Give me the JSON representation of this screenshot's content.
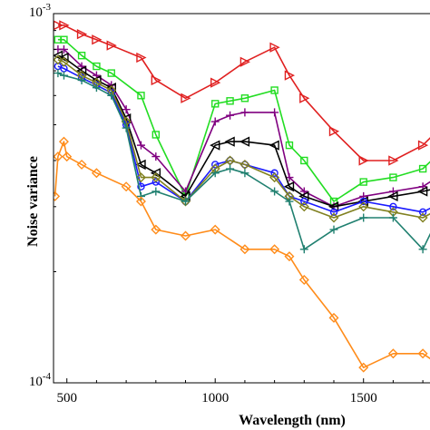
{
  "chart_data": {
    "type": "line",
    "title": "",
    "xlabel": "Wavelength (nm)",
    "ylabel": "Noise variance",
    "xlim": [
      455,
      1770
    ],
    "ylim": [
      0.0001,
      0.001
    ],
    "yscale": "log",
    "xticks": [
      500,
      1000,
      1500
    ],
    "xtick_labels": [
      "500",
      "1000",
      "1500"
    ],
    "ytick_labels": [
      {
        "value": 0.0001,
        "base": "10",
        "exp": "-4"
      },
      {
        "value": 0.001,
        "base": "10",
        "exp": "-3"
      }
    ],
    "grid": false,
    "legend": "none",
    "series": [
      {
        "color": "#e02020",
        "marker": "triangle-right",
        "x": [
          470,
          490,
          550,
          600,
          650,
          750,
          800,
          900,
          1000,
          1100,
          1200,
          1250,
          1300,
          1400,
          1500,
          1600,
          1700,
          1770
        ],
        "y": [
          0.00093,
          0.00093,
          0.00088,
          0.00085,
          0.00082,
          0.00076,
          0.00066,
          0.00059,
          0.00065,
          0.00074,
          0.00081,
          0.00068,
          0.00059,
          0.00048,
          0.0004,
          0.0004,
          0.00044,
          0.0005
        ]
      },
      {
        "color": "#22dd22",
        "marker": "square",
        "x": [
          470,
          490,
          550,
          600,
          650,
          750,
          800,
          900,
          1000,
          1050,
          1100,
          1200,
          1250,
          1300,
          1400,
          1500,
          1600,
          1700,
          1770
        ],
        "y": [
          0.00085,
          0.00085,
          0.00077,
          0.00072,
          0.00069,
          0.0006,
          0.00047,
          0.00032,
          0.00057,
          0.00058,
          0.00059,
          0.00062,
          0.00044,
          0.0004,
          0.00031,
          0.00035,
          0.00036,
          0.00038,
          0.00043
        ]
      },
      {
        "color": "#800080",
        "marker": "plus",
        "x": [
          470,
          490,
          550,
          600,
          650,
          700,
          750,
          800,
          900,
          1000,
          1050,
          1100,
          1200,
          1250,
          1300,
          1400,
          1500,
          1600,
          1700,
          1770
        ],
        "y": [
          0.0008,
          0.0008,
          0.00072,
          0.00068,
          0.00064,
          0.00055,
          0.00044,
          0.00041,
          0.00033,
          0.00051,
          0.00053,
          0.00054,
          0.00054,
          0.00036,
          0.00033,
          0.0003,
          0.00032,
          0.00033,
          0.00034,
          0.00037
        ]
      },
      {
        "color": "#000000",
        "marker": "triangle-left",
        "x": [
          470,
          490,
          550,
          600,
          650,
          700,
          750,
          800,
          900,
          1000,
          1050,
          1100,
          1200,
          1250,
          1300,
          1400,
          1500,
          1600,
          1700,
          1770
        ],
        "y": [
          0.00077,
          0.00076,
          0.0007,
          0.00066,
          0.00063,
          0.00052,
          0.00039,
          0.00037,
          0.00032,
          0.00044,
          0.00045,
          0.00045,
          0.00044,
          0.00034,
          0.00032,
          0.0003,
          0.00031,
          0.00032,
          0.00033,
          0.00034
        ]
      },
      {
        "color": "#1a1aff",
        "marker": "circle",
        "x": [
          470,
          490,
          550,
          600,
          650,
          700,
          750,
          800,
          900,
          1000,
          1050,
          1100,
          1200,
          1250,
          1300,
          1400,
          1500,
          1600,
          1700,
          1770
        ],
        "y": [
          0.00072,
          0.00071,
          0.00067,
          0.00064,
          0.00061,
          0.0005,
          0.00034,
          0.00035,
          0.00031,
          0.00039,
          0.0004,
          0.00039,
          0.00037,
          0.00032,
          0.00031,
          0.00029,
          0.00031,
          0.0003,
          0.00029,
          0.00031
        ]
      },
      {
        "color": "#808020",
        "marker": "diamond",
        "x": [
          470,
          490,
          550,
          600,
          650,
          700,
          750,
          800,
          900,
          1000,
          1050,
          1100,
          1200,
          1250,
          1300,
          1400,
          1500,
          1600,
          1700,
          1770
        ],
        "y": [
          0.00075,
          0.00074,
          0.00068,
          0.00065,
          0.00062,
          0.00051,
          0.00036,
          0.00036,
          0.00031,
          0.00038,
          0.0004,
          0.00039,
          0.00036,
          0.00032,
          0.0003,
          0.00028,
          0.0003,
          0.00029,
          0.00028,
          0.0003
        ]
      },
      {
        "color": "#208070",
        "marker": "plus",
        "x": [
          470,
          490,
          550,
          600,
          650,
          700,
          750,
          800,
          900,
          1000,
          1050,
          1100,
          1200,
          1250,
          1300,
          1400,
          1500,
          1600,
          1700,
          1770
        ],
        "y": [
          0.00069,
          0.00068,
          0.00066,
          0.00063,
          0.0006,
          0.00049,
          0.00032,
          0.00033,
          0.00031,
          0.00037,
          0.00038,
          0.00037,
          0.00033,
          0.00031,
          0.00023,
          0.00026,
          0.00028,
          0.00028,
          0.00023,
          0.0003
        ]
      },
      {
        "color": "#ff8c1a",
        "marker": "diamond",
        "x": [
          460,
          470,
          490,
          500,
          550,
          600,
          700,
          750,
          800,
          900,
          1000,
          1100,
          1200,
          1250,
          1300,
          1400,
          1500,
          1600,
          1700,
          1770
        ],
        "y": [
          0.00032,
          0.00041,
          0.00045,
          0.00041,
          0.00039,
          0.00037,
          0.00034,
          0.00031,
          0.00026,
          0.00025,
          0.00026,
          0.00023,
          0.00023,
          0.00022,
          0.00019,
          0.00015,
          0.00011,
          0.00012,
          0.00012,
          0.00011
        ]
      }
    ]
  }
}
